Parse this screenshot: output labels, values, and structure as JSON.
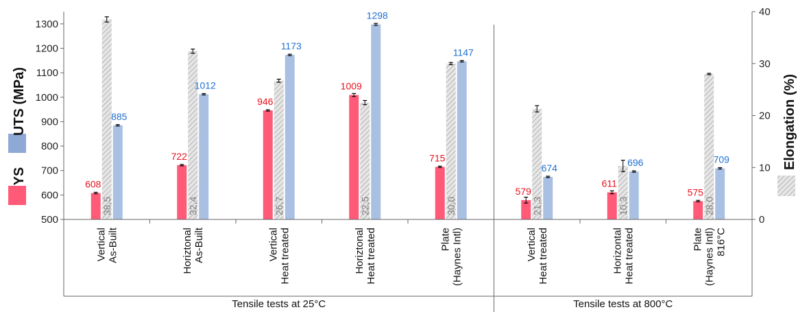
{
  "chart_data": {
    "type": "bar",
    "categories": [
      [
        "Vertical",
        "As-Built"
      ],
      [
        "Horiztonal",
        "As-Built"
      ],
      [
        "Vertical",
        "Heat treated"
      ],
      [
        "Horiztonal",
        "Heat treated"
      ],
      [
        "Plate",
        "(Haynes Intl)"
      ],
      [
        "Vertical",
        "Heat treated"
      ],
      [
        "Horizontal",
        "Heat treated"
      ],
      [
        "Plate",
        "(Haynes Intl)",
        "816°C"
      ]
    ],
    "groups": [
      {
        "label": "Tensile tests at 25°C",
        "span": [
          0,
          4
        ]
      },
      {
        "label": "Tensile tests at 800°C",
        "span": [
          5,
          7
        ]
      }
    ],
    "series": [
      {
        "name": "YS",
        "axis": "left",
        "color": "#ff5a78",
        "values": [
          608,
          722,
          946,
          1009,
          715,
          579,
          611,
          575
        ],
        "errors": [
          3,
          2,
          2,
          6,
          2,
          12,
          6,
          3
        ],
        "labels": [
          "608",
          "722",
          "946",
          "1009",
          "715",
          "579",
          "611",
          "575"
        ]
      },
      {
        "name": "Elongation (%)",
        "axis": "right",
        "color": "#c8c8c8",
        "values": [
          38.5,
          32.4,
          26.7,
          22.5,
          30.0,
          21.3,
          10.3,
          28.0
        ],
        "errors": [
          0.5,
          0.4,
          0.3,
          0.4,
          0.2,
          0.6,
          1.1,
          0.1
        ],
        "labels": [
          "38,5",
          "32,4",
          "26,7",
          "22,5",
          "30,0",
          "21,3",
          "10,3",
          "28,0"
        ]
      },
      {
        "name": "UTS (MPa)",
        "axis": "left",
        "color": "#a9c0e3",
        "values": [
          885,
          1012,
          1173,
          1298,
          1147,
          674,
          696,
          709
        ],
        "errors": [
          2,
          1,
          2,
          4,
          1,
          2,
          2,
          2
        ],
        "labels": [
          "885",
          "1012",
          "1173",
          "1298",
          "1147",
          "674",
          "696",
          "709"
        ]
      }
    ],
    "y_left": {
      "label_ys": "YS",
      "label_uts": "UTS (MPa)",
      "ylim": [
        500,
        1350
      ],
      "ticks": [
        500,
        600,
        700,
        800,
        900,
        1000,
        1100,
        1200,
        1300
      ]
    },
    "y_right": {
      "label": "Elongation (%)",
      "ylim": [
        0,
        40
      ],
      "ticks": [
        0,
        10,
        20,
        30,
        40
      ]
    },
    "grid": false
  }
}
